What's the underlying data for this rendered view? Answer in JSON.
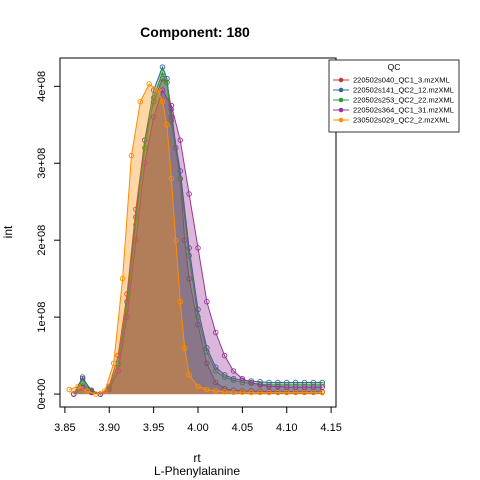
{
  "chart_data": {
    "type": "area",
    "title": "Component: 180",
    "xlabel": "rt",
    "xlabel_sub": "L-Phenylalanine",
    "ylabel": "int",
    "xlim": [
      3.85,
      4.15
    ],
    "ylim": [
      0,
      420000000
    ],
    "xticks": [
      3.85,
      3.9,
      3.95,
      4.0,
      4.05,
      4.1,
      4.15
    ],
    "xtick_labels": [
      "3.85",
      "3.90",
      "3.95",
      "4.00",
      "4.05",
      "4.10",
      "4.15"
    ],
    "yticks": [
      0,
      100000000,
      200000000,
      300000000,
      400000000
    ],
    "ytick_labels": [
      "0e+00",
      "1e+08",
      "2e+08",
      "3e+08",
      "4e+08"
    ],
    "legend_title": "QC",
    "legend_position": "top-right",
    "series": [
      {
        "name": "220502s040_QC1_3.mzXML",
        "color": "#cc3333",
        "x": [
          3.86,
          3.87,
          3.88,
          3.89,
          3.9,
          3.91,
          3.92,
          3.93,
          3.94,
          3.95,
          3.96,
          3.965,
          3.97,
          3.975,
          3.98,
          3.985,
          3.99,
          4.0,
          4.01,
          4.02,
          4.03,
          4.04,
          4.05,
          4.06,
          4.07,
          4.08,
          4.09,
          4.1,
          4.11,
          4.12,
          4.13,
          4.14
        ],
        "values": [
          0,
          20000000,
          5000000,
          0,
          10000000,
          50000000,
          130000000,
          240000000,
          330000000,
          380000000,
          410000000,
          405000000,
          370000000,
          320000000,
          280000000,
          200000000,
          150000000,
          90000000,
          40000000,
          15000000,
          7000000,
          5000000,
          4000000,
          4000000,
          3500000,
          3500000,
          3000000,
          3000000,
          3000000,
          3000000,
          3000000,
          3000000
        ]
      },
      {
        "name": "220502s141_QC2_12.mzXML",
        "color": "#336699",
        "x": [
          3.86,
          3.87,
          3.88,
          3.89,
          3.9,
          3.91,
          3.92,
          3.93,
          3.94,
          3.95,
          3.96,
          3.965,
          3.97,
          3.98,
          3.99,
          4.0,
          4.01,
          4.02,
          4.03,
          4.04,
          4.05,
          4.06,
          4.07,
          4.08,
          4.09,
          4.1,
          4.11,
          4.12,
          4.13,
          4.14
        ],
        "values": [
          0,
          22000000,
          3000000,
          0,
          8000000,
          40000000,
          120000000,
          230000000,
          330000000,
          395000000,
          425000000,
          410000000,
          360000000,
          290000000,
          190000000,
          110000000,
          60000000,
          35000000,
          25000000,
          20000000,
          18000000,
          17000000,
          16000000,
          15000000,
          15000000,
          15000000,
          15000000,
          15000000,
          15000000,
          15000000
        ]
      },
      {
        "name": "220502s253_QC2_22.mzXML",
        "color": "#339933",
        "x": [
          3.86,
          3.87,
          3.88,
          3.89,
          3.9,
          3.91,
          3.92,
          3.93,
          3.94,
          3.95,
          3.96,
          3.965,
          3.97,
          3.98,
          3.99,
          4.0,
          4.01,
          4.02,
          4.03,
          4.04,
          4.05,
          4.06,
          4.07,
          4.08,
          4.09,
          4.1,
          4.11,
          4.12,
          4.13,
          4.14
        ],
        "values": [
          0,
          14000000,
          4000000,
          0,
          7000000,
          38000000,
          110000000,
          220000000,
          320000000,
          385000000,
          418000000,
          405000000,
          355000000,
          280000000,
          180000000,
          100000000,
          55000000,
          30000000,
          22000000,
          18000000,
          15000000,
          14000000,
          13000000,
          12000000,
          12000000,
          12000000,
          12000000,
          12000000,
          12000000,
          12000000
        ]
      },
      {
        "name": "220502s364_QC1_31.mzXML",
        "color": "#993399",
        "x": [
          3.86,
          3.87,
          3.88,
          3.89,
          3.9,
          3.91,
          3.92,
          3.93,
          3.94,
          3.95,
          3.96,
          3.97,
          3.98,
          3.99,
          4.0,
          4.01,
          4.02,
          4.03,
          4.04,
          4.05,
          4.06,
          4.07,
          4.08,
          4.09,
          4.1,
          4.11,
          4.12,
          4.13,
          4.14
        ],
        "values": [
          0,
          8000000,
          2000000,
          0,
          6000000,
          30000000,
          100000000,
          200000000,
          300000000,
          360000000,
          395000000,
          375000000,
          330000000,
          260000000,
          190000000,
          120000000,
          80000000,
          50000000,
          30000000,
          20000000,
          15000000,
          12000000,
          10000000,
          10000000,
          9000000,
          9000000,
          9000000,
          9000000,
          9000000
        ]
      },
      {
        "name": "230502s029_QC2_2.mzXML",
        "color": "#ff8c00",
        "x": [
          3.855,
          3.865,
          3.875,
          3.885,
          3.895,
          3.905,
          3.915,
          3.925,
          3.935,
          3.945,
          3.955,
          3.96,
          3.965,
          3.97,
          3.975,
          3.98,
          3.985,
          3.99,
          4.0,
          4.01,
          4.02,
          4.03,
          4.04,
          4.05,
          4.06,
          4.07,
          4.08,
          4.09,
          4.1,
          4.11,
          4.12,
          4.13,
          4.14
        ],
        "values": [
          6000000,
          10000000,
          4000000,
          0,
          4000000,
          40000000,
          150000000,
          310000000,
          380000000,
          403000000,
          395000000,
          380000000,
          350000000,
          280000000,
          200000000,
          120000000,
          60000000,
          25000000,
          10000000,
          6000000,
          4000000,
          3000000,
          2500000,
          2500000,
          2000000,
          2000000,
          2000000,
          2000000,
          2000000,
          2000000,
          2000000,
          2000000,
          2000000
        ]
      }
    ]
  }
}
